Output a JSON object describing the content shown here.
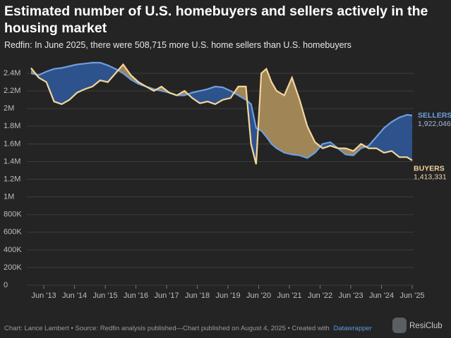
{
  "chart_data": {
    "type": "line",
    "title": "Estimated number of U.S. homebuyers and sellers actively in the housing market",
    "subtitle": "Redfin: In June 2025, there were 508,715 more U.S. home sellers than U.S. homebuyers",
    "x": [
      "2013-01",
      "2013-04",
      "2013-07",
      "2013-10",
      "2014-01",
      "2014-04",
      "2014-07",
      "2014-10",
      "2015-01",
      "2015-04",
      "2015-07",
      "2015-10",
      "2016-01",
      "2016-04",
      "2016-07",
      "2016-10",
      "2017-01",
      "2017-04",
      "2017-07",
      "2017-10",
      "2018-01",
      "2018-04",
      "2018-07",
      "2018-10",
      "2019-01",
      "2019-04",
      "2019-07",
      "2019-10",
      "2020-01",
      "2020-03",
      "2020-05",
      "2020-07",
      "2020-09",
      "2020-11",
      "2021-01",
      "2021-04",
      "2021-07",
      "2021-10",
      "2022-01",
      "2022-04",
      "2022-07",
      "2022-10",
      "2023-01",
      "2023-04",
      "2023-07",
      "2023-10",
      "2024-01",
      "2024-04",
      "2024-07",
      "2024-10",
      "2025-01",
      "2025-04",
      "2025-06"
    ],
    "xlim": [
      "2013-01",
      "2025-06"
    ],
    "xticks": [
      {
        "value": "2013-06",
        "label": "Jun '13"
      },
      {
        "value": "2014-06",
        "label": "Jun '14"
      },
      {
        "value": "2015-06",
        "label": "Jun '15"
      },
      {
        "value": "2016-06",
        "label": "Jun '16"
      },
      {
        "value": "2017-06",
        "label": "Jun '17"
      },
      {
        "value": "2018-06",
        "label": "Jun '18"
      },
      {
        "value": "2019-06",
        "label": "Jun '19"
      },
      {
        "value": "2020-06",
        "label": "Jun '20"
      },
      {
        "value": "2021-06",
        "label": "Jun '21"
      },
      {
        "value": "2022-06",
        "label": "Jun '22"
      },
      {
        "value": "2023-06",
        "label": "Jun '23"
      },
      {
        "value": "2024-06",
        "label": "Jun '24"
      },
      {
        "value": "2025-06",
        "label": "Jun '25"
      }
    ],
    "ylim": [
      0,
      2560000
    ],
    "yticks": [
      0,
      {
        "value": 200000,
        "label": "200K"
      },
      {
        "value": 400000,
        "label": "400K"
      },
      {
        "value": 600000,
        "label": "600K"
      },
      {
        "value": 800000,
        "label": "800K"
      },
      {
        "value": 1000000,
        "label": "1M"
      },
      {
        "value": 1200000,
        "label": "1.2M"
      },
      {
        "value": 1400000,
        "label": "1.4M"
      },
      {
        "value": 1600000,
        "label": "1.6M"
      },
      {
        "value": 1800000,
        "label": "1.8M"
      },
      {
        "value": 2000000,
        "label": "2M"
      },
      {
        "value": 2200000,
        "label": "2.2M"
      },
      {
        "value": 2400000,
        "label": "2.4M"
      }
    ],
    "grid": true,
    "series": [
      {
        "name": "SELLERS",
        "color": "#6d9fe0",
        "fill": "#2f5591",
        "values": [
          2400000,
          2380000,
          2420000,
          2450000,
          2460000,
          2480000,
          2500000,
          2510000,
          2520000,
          2520000,
          2490000,
          2450000,
          2400000,
          2330000,
          2280000,
          2250000,
          2220000,
          2200000,
          2180000,
          2150000,
          2150000,
          2180000,
          2200000,
          2220000,
          2250000,
          2240000,
          2200000,
          2150000,
          2100000,
          2050000,
          1780000,
          1750000,
          1680000,
          1600000,
          1550000,
          1500000,
          1480000,
          1470000,
          1440000,
          1500000,
          1600000,
          1620000,
          1550000,
          1480000,
          1470000,
          1550000,
          1580000,
          1680000,
          1780000,
          1850000,
          1900000,
          1930000,
          1922046
        ],
        "value_labels": [
          null,
          null,
          null,
          null,
          null,
          null,
          null,
          null,
          null,
          null,
          null,
          null,
          null,
          null,
          null,
          null,
          null,
          null,
          null,
          null,
          null,
          null,
          null,
          null,
          null,
          null,
          null,
          null,
          null,
          null,
          null,
          null,
          null,
          null,
          null,
          null,
          null,
          null,
          null,
          null,
          null,
          null,
          null,
          null,
          null,
          null,
          null,
          null,
          null,
          null,
          null,
          null,
          "1,922,046"
        ]
      },
      {
        "name": "BUYERS",
        "color": "#f4d69c",
        "fill": "#a88b5a",
        "values": [
          2460000,
          2350000,
          2300000,
          2080000,
          2050000,
          2100000,
          2180000,
          2220000,
          2250000,
          2320000,
          2300000,
          2400000,
          2500000,
          2380000,
          2300000,
          2250000,
          2200000,
          2250000,
          2180000,
          2150000,
          2200000,
          2120000,
          2060000,
          2080000,
          2050000,
          2100000,
          2120000,
          2250000,
          2250000,
          1600000,
          1370000,
          2400000,
          2450000,
          2300000,
          2200000,
          2150000,
          2350000,
          2100000,
          1800000,
          1620000,
          1550000,
          1580000,
          1550000,
          1550000,
          1520000,
          1600000,
          1550000,
          1550000,
          1500000,
          1520000,
          1450000,
          1450000,
          1413331
        ],
        "value_labels": [
          null,
          null,
          null,
          null,
          null,
          null,
          null,
          null,
          null,
          null,
          null,
          null,
          null,
          null,
          null,
          null,
          null,
          null,
          null,
          null,
          null,
          null,
          null,
          null,
          null,
          null,
          null,
          null,
          null,
          null,
          null,
          null,
          null,
          null,
          null,
          null,
          null,
          null,
          null,
          null,
          null,
          null,
          null,
          null,
          null,
          null,
          null,
          null,
          null,
          null,
          null,
          null,
          "1,413,331"
        ]
      }
    ]
  },
  "footer": {
    "text": "Chart: Lance Lambert • Source: Redfin analysis published—Chart published on August 4, 2025 • Created with",
    "link": "Datawrapper"
  },
  "logo": {
    "text": "ResiClub"
  }
}
